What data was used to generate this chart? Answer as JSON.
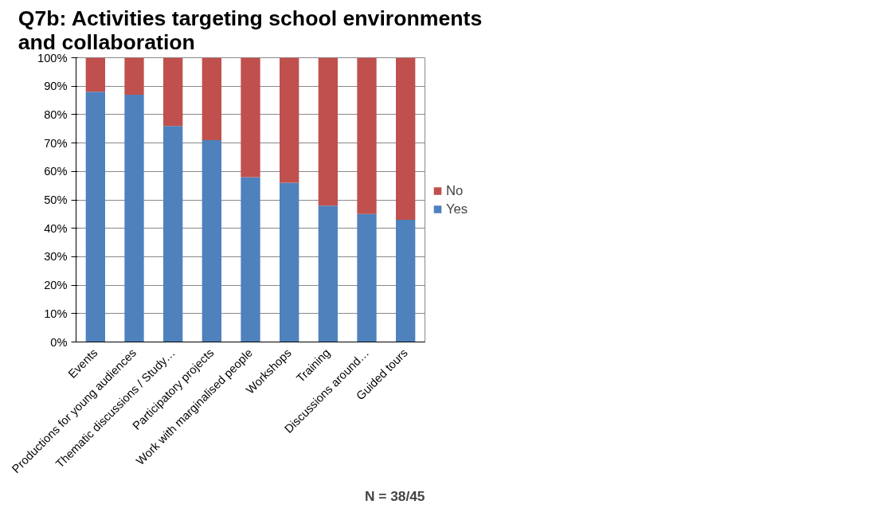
{
  "chart_data": {
    "type": "bar",
    "stacked": true,
    "title": "Q7b: Activities targeting school environments and collaboration",
    "categories": [
      "Events",
      "Productions for young audiences",
      "Thematic discussions / Study…",
      "Participatory projects",
      "Work with marginalised people",
      "Workshops",
      "Training",
      "Discussions around…",
      "Guided tours"
    ],
    "series": [
      {
        "name": "Yes",
        "color": "#4f81bd",
        "values": [
          88,
          87,
          76,
          71,
          58,
          56,
          48,
          45,
          43
        ]
      },
      {
        "name": "No",
        "color": "#c0504d",
        "values": [
          12,
          13,
          24,
          29,
          42,
          44,
          52,
          55,
          57
        ]
      }
    ],
    "ylim": [
      0,
      100
    ],
    "yticks": [
      {
        "value": 0,
        "label": "0%"
      },
      {
        "value": 10,
        "label": "10%"
      },
      {
        "value": 20,
        "label": "20%"
      },
      {
        "value": 30,
        "label": "30%"
      },
      {
        "value": 40,
        "label": "40%"
      },
      {
        "value": 50,
        "label": "50%"
      },
      {
        "value": 60,
        "label": "60%"
      },
      {
        "value": 70,
        "label": "70%"
      },
      {
        "value": 80,
        "label": "80%"
      },
      {
        "value": 90,
        "label": "90%"
      },
      {
        "value": 100,
        "label": "100%"
      }
    ],
    "grid": "y",
    "legend": "right",
    "annotations": [
      "N = 38/45"
    ]
  }
}
